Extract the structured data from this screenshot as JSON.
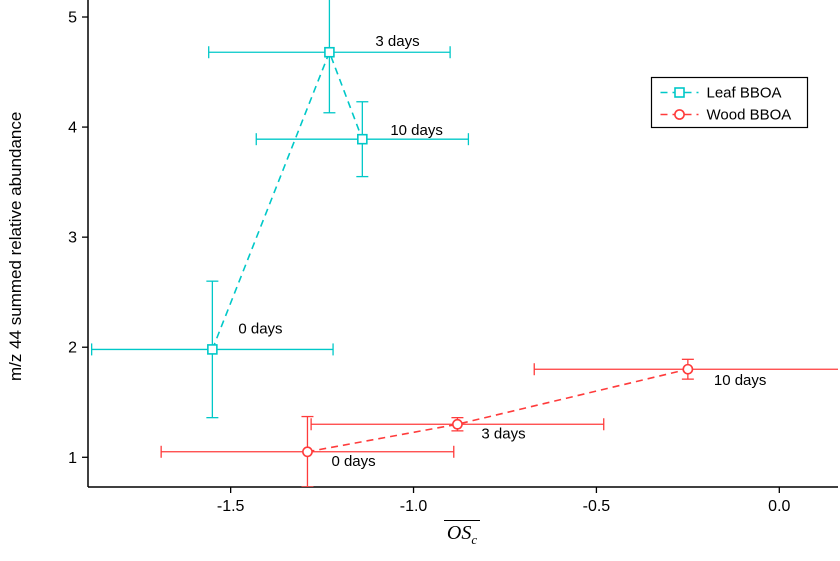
{
  "chart_data": {
    "type": "scatter",
    "title": "",
    "xlabel": {
      "base": "OS",
      "subscript": "c",
      "overline": true
    },
    "ylabel": "m/z 44 summed relative abundance",
    "xlim": [
      -1.89,
      0.155
    ],
    "ylim": [
      0.73,
      5.1
    ],
    "grid": false,
    "axis_color": "#000000",
    "text_color": "#000000",
    "xticks": [
      {
        "v": -1.5,
        "label": "-1.5"
      },
      {
        "v": -1.0,
        "label": "-1.0"
      },
      {
        "v": -0.5,
        "label": "-0.5"
      },
      {
        "v": 0.0,
        "label": "0.0"
      }
    ],
    "yticks": [
      {
        "v": 1,
        "label": "1"
      },
      {
        "v": 2,
        "label": "2"
      },
      {
        "v": 3,
        "label": "3"
      },
      {
        "v": 4,
        "label": "4"
      },
      {
        "v": 5,
        "label": "5"
      }
    ],
    "legend": {
      "position": "top-right",
      "border_color": "#000000",
      "background": "#ffffff"
    },
    "series": [
      {
        "name": "Leaf BBOA",
        "color": "#00c8c8",
        "marker": "square",
        "line_style": "dashed",
        "points": [
          {
            "label": "0 days",
            "x": -1.55,
            "y": 1.98,
            "xerr": 0.33,
            "yerr": 0.62,
            "label_dx": 26,
            "label_dy": -16
          },
          {
            "label": "3 days",
            "x": -1.23,
            "y": 4.68,
            "xerr": 0.33,
            "yerr": 0.55,
            "label_dx": 46,
            "label_dy": -6
          },
          {
            "label": "10 days",
            "x": -1.14,
            "y": 3.89,
            "xerr": 0.29,
            "yerr": 0.34,
            "label_dx": 28,
            "label_dy": -4
          }
        ]
      },
      {
        "name": "Wood BBOA",
        "color": "#ff3b3b",
        "marker": "circle",
        "line_style": "dashed",
        "points": [
          {
            "label": "0 days",
            "x": -1.29,
            "y": 1.05,
            "xerr": 0.4,
            "yerr": 0.32,
            "label_dx": 24,
            "label_dy": 14
          },
          {
            "label": "3 days",
            "x": -0.88,
            "y": 1.3,
            "xerr": 0.4,
            "yerr": 0.06,
            "label_dx": 24,
            "label_dy": 14
          },
          {
            "label": "10 days",
            "x": -0.25,
            "y": 1.8,
            "xerr": 0.42,
            "yerr": 0.09,
            "label_dx": 26,
            "label_dy": 16
          }
        ]
      }
    ]
  }
}
